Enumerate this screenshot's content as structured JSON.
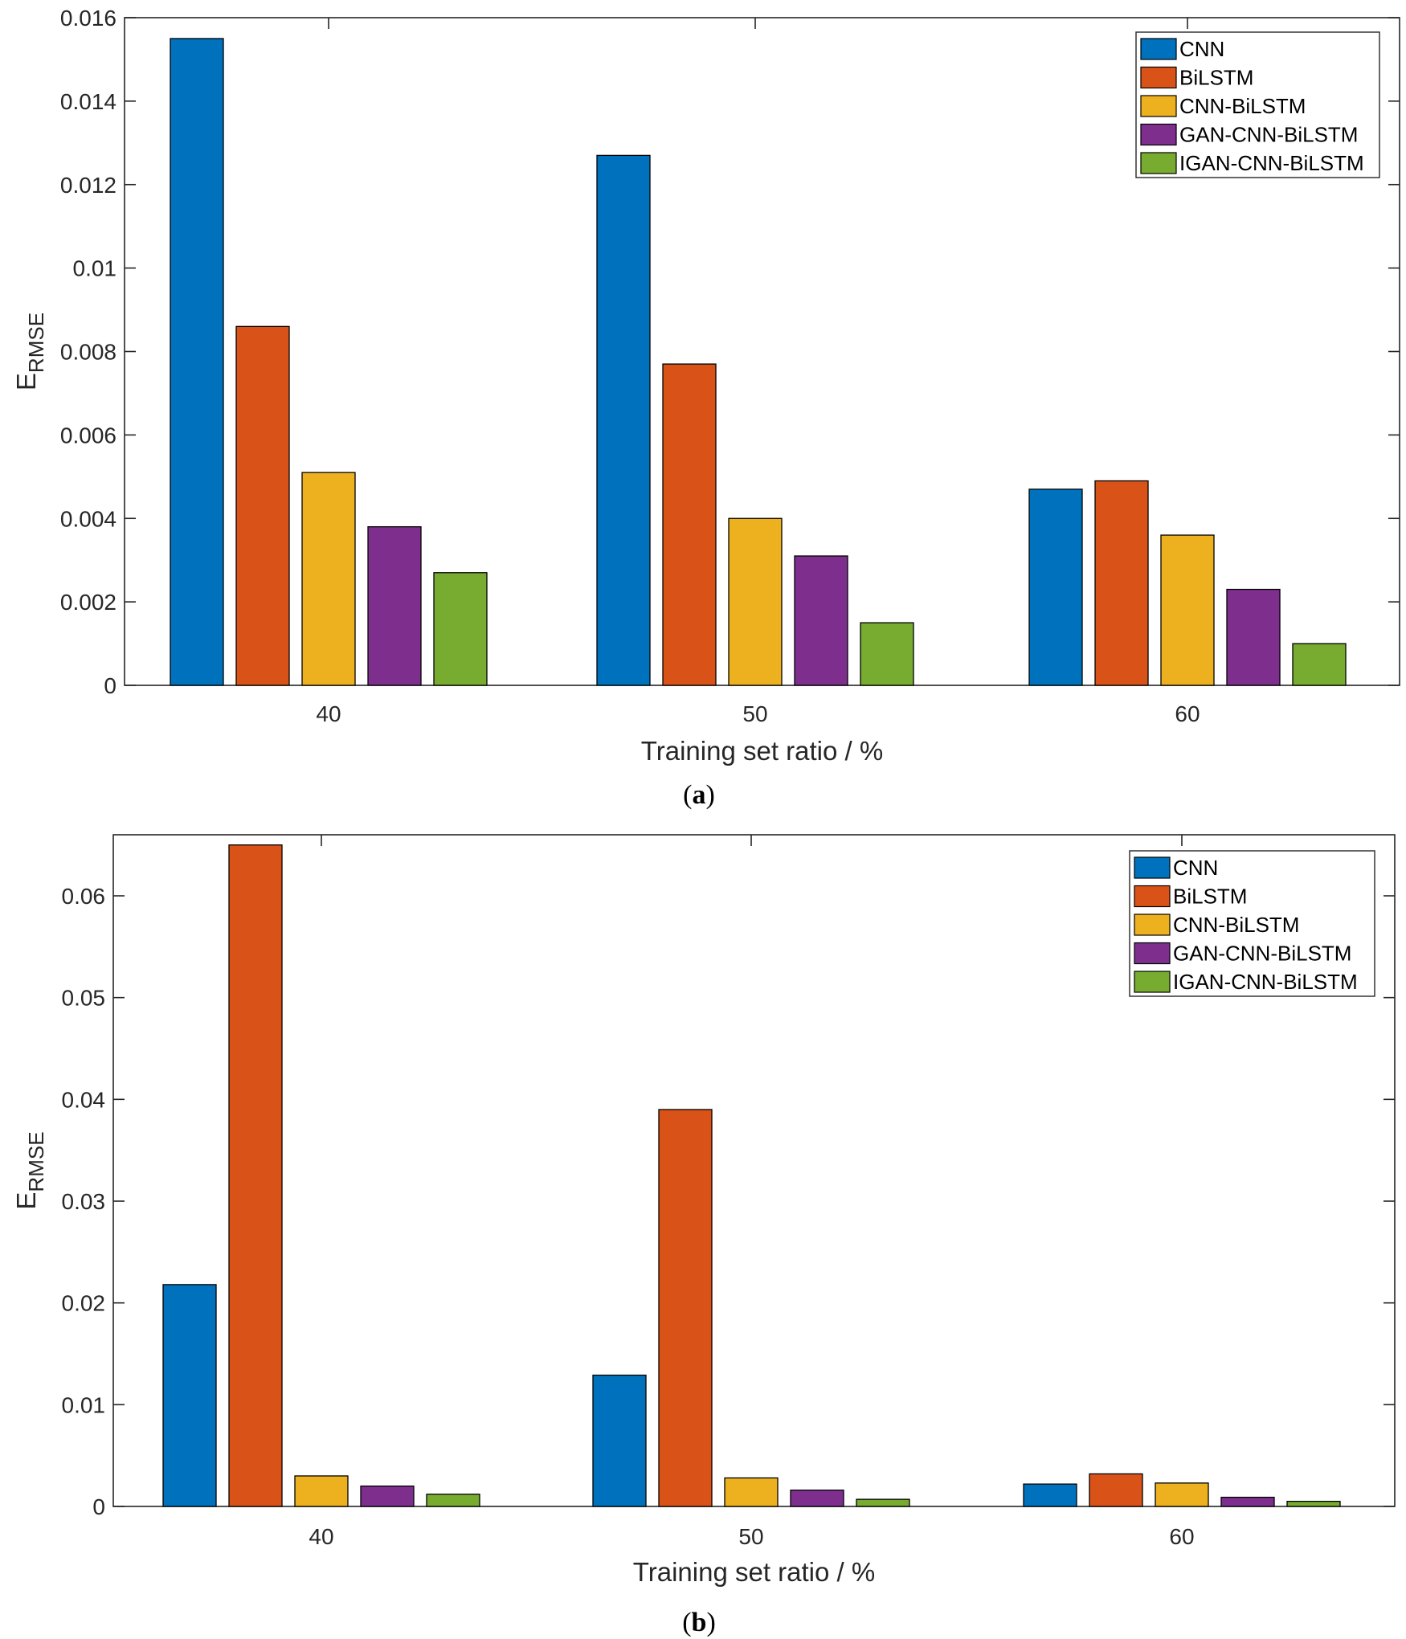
{
  "chart_data": [
    {
      "type": "bar",
      "caption": "a",
      "xlabel": "Training set ratio / %",
      "ylabel": {
        "base": "E",
        "subscript": "RMSE"
      },
      "categories": [
        "40",
        "50",
        "60"
      ],
      "ylim": [
        0,
        0.016
      ],
      "yticks": [
        "0",
        "0.002",
        "0.004",
        "0.006",
        "0.008",
        "0.01",
        "0.012",
        "0.014",
        "0.016"
      ],
      "yticks_values": [
        0,
        0.002,
        0.004,
        0.006,
        0.008,
        0.01,
        0.012,
        0.014,
        0.016
      ],
      "legend_position": "top-right",
      "grid": false,
      "series": [
        {
          "name": "CNN",
          "color": "#0072BD",
          "values": [
            0.0155,
            0.0127,
            0.0047
          ]
        },
        {
          "name": "BiLSTM",
          "color": "#D95319",
          "values": [
            0.0086,
            0.0077,
            0.0049
          ]
        },
        {
          "name": "CNN-BiLSTM",
          "color": "#EDB120",
          "values": [
            0.0051,
            0.004,
            0.0036
          ]
        },
        {
          "name": "GAN-CNN-BiLSTM",
          "color": "#7E2F8E",
          "values": [
            0.0038,
            0.0031,
            0.0023
          ]
        },
        {
          "name": "IGAN-CNN-BiLSTM",
          "color": "#77AC30",
          "values": [
            0.0027,
            0.0015,
            0.001
          ]
        }
      ]
    },
    {
      "type": "bar",
      "caption": "b",
      "xlabel": "Training set ratio / %",
      "ylabel": {
        "base": "E",
        "subscript": "RMSE"
      },
      "categories": [
        "40",
        "50",
        "60"
      ],
      "ylim": [
        0,
        0.066
      ],
      "yticks": [
        "0",
        "0.01",
        "0.02",
        "0.03",
        "0.04",
        "0.05",
        "0.06"
      ],
      "yticks_values": [
        0,
        0.01,
        0.02,
        0.03,
        0.04,
        0.05,
        0.06
      ],
      "legend_position": "top-right",
      "grid": false,
      "series": [
        {
          "name": "CNN",
          "color": "#0072BD",
          "values": [
            0.0218,
            0.0129,
            0.0022
          ]
        },
        {
          "name": "BiLSTM",
          "color": "#D95319",
          "values": [
            0.065,
            0.039,
            0.0032
          ]
        },
        {
          "name": "CNN-BiLSTM",
          "color": "#EDB120",
          "values": [
            0.003,
            0.0028,
            0.0023
          ]
        },
        {
          "name": "GAN-CNN-BiLSTM",
          "color": "#7E2F8E",
          "values": [
            0.002,
            0.0016,
            0.0009
          ]
        },
        {
          "name": "IGAN-CNN-BiLSTM",
          "color": "#77AC30",
          "values": [
            0.0012,
            0.0007,
            0.0005
          ]
        }
      ]
    }
  ]
}
